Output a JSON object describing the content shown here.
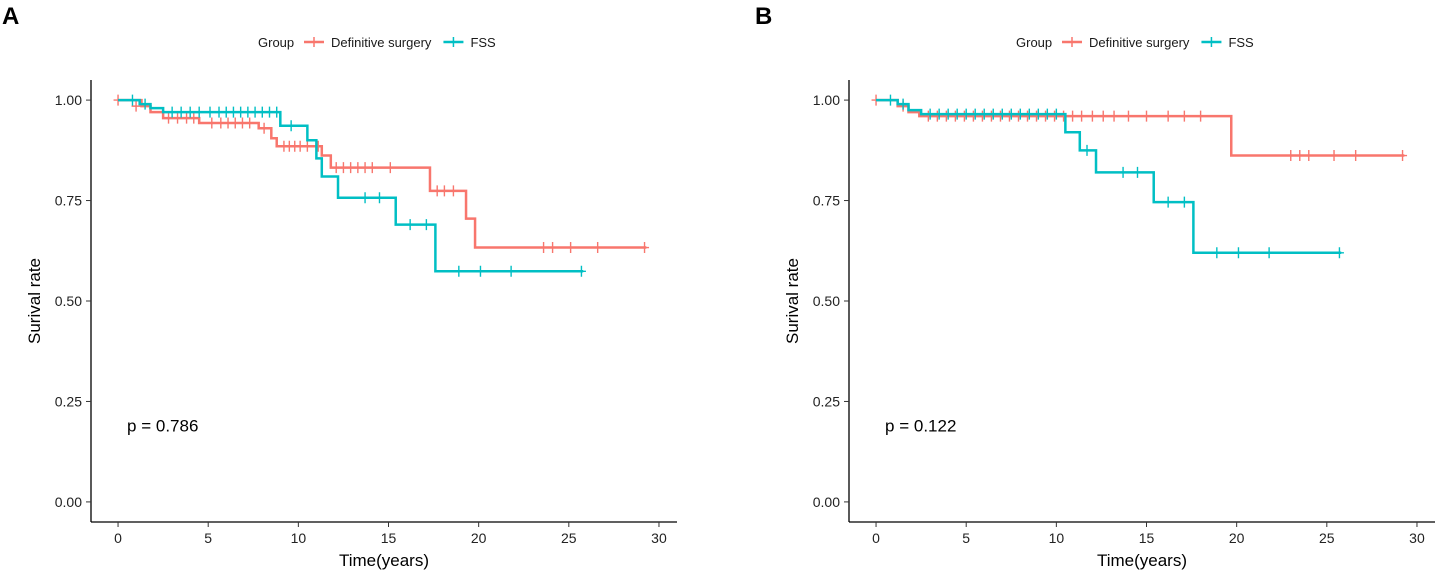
{
  "chart_data": [
    {
      "type": "line",
      "panel_label": "A",
      "legend": {
        "title": "Group",
        "position": "top",
        "entries": [
          "Definitive surgery",
          "FSS"
        ]
      },
      "xlabel": "Time(years)",
      "ylabel": "Surival rate",
      "xlim": [
        -1.5,
        31
      ],
      "ylim": [
        -0.05,
        1.05
      ],
      "x_ticks": [
        0,
        5,
        10,
        15,
        20,
        25,
        30
      ],
      "y_ticks": [
        "0.00",
        "0.25",
        "0.50",
        "0.75",
        "1.00"
      ],
      "annotation": {
        "text": "p = 0.786",
        "x": 0.5,
        "y": 0.19
      },
      "series": [
        {
          "name": "Definitive surgery",
          "color": "#F8766D",
          "steps": [
            [
              0,
              1.0
            ],
            [
              1.3,
              0.985
            ],
            [
              1.8,
              0.97
            ],
            [
              2.5,
              0.955
            ],
            [
              4.5,
              0.943
            ],
            [
              7.8,
              0.93
            ],
            [
              8.5,
              0.905
            ],
            [
              8.8,
              0.885
            ],
            [
              11.3,
              0.862
            ],
            [
              11.8,
              0.832
            ],
            [
              17.3,
              0.774
            ],
            [
              19.3,
              0.705
            ],
            [
              19.8,
              0.633
            ],
            [
              29.3,
              0.633
            ]
          ],
          "censor": [
            [
              0,
              1.0
            ],
            [
              1.0,
              0.985
            ],
            [
              2.8,
              0.955
            ],
            [
              3.3,
              0.955
            ],
            [
              3.8,
              0.955
            ],
            [
              4.2,
              0.955
            ],
            [
              5.2,
              0.943
            ],
            [
              5.7,
              0.943
            ],
            [
              6.1,
              0.943
            ],
            [
              6.5,
              0.943
            ],
            [
              6.9,
              0.943
            ],
            [
              7.3,
              0.943
            ],
            [
              8.1,
              0.93
            ],
            [
              9.2,
              0.885
            ],
            [
              9.5,
              0.885
            ],
            [
              9.8,
              0.885
            ],
            [
              10.1,
              0.885
            ],
            [
              10.5,
              0.885
            ],
            [
              11.1,
              0.885
            ],
            [
              12.1,
              0.832
            ],
            [
              12.5,
              0.832
            ],
            [
              12.9,
              0.832
            ],
            [
              13.3,
              0.832
            ],
            [
              13.7,
              0.832
            ],
            [
              14.1,
              0.832
            ],
            [
              15.1,
              0.832
            ],
            [
              17.7,
              0.774
            ],
            [
              18.1,
              0.774
            ],
            [
              18.6,
              0.774
            ],
            [
              23.6,
              0.633
            ],
            [
              24.1,
              0.633
            ],
            [
              25.1,
              0.633
            ],
            [
              26.6,
              0.633
            ],
            [
              29.2,
              0.633
            ]
          ]
        },
        {
          "name": "FSS",
          "color": "#00BFC4",
          "steps": [
            [
              0,
              1.0
            ],
            [
              1.2,
              0.99
            ],
            [
              1.8,
              0.98
            ],
            [
              2.5,
              0.97
            ],
            [
              9.0,
              0.936
            ],
            [
              10.5,
              0.9
            ],
            [
              11.0,
              0.855
            ],
            [
              11.3,
              0.81
            ],
            [
              12.2,
              0.757
            ],
            [
              15.4,
              0.69
            ],
            [
              17.6,
              0.574
            ],
            [
              25.8,
              0.574
            ]
          ],
          "censor": [
            [
              0.8,
              1.0
            ],
            [
              1.5,
              0.99
            ],
            [
              3.0,
              0.97
            ],
            [
              3.5,
              0.97
            ],
            [
              4.0,
              0.97
            ],
            [
              4.5,
              0.97
            ],
            [
              5.1,
              0.97
            ],
            [
              5.6,
              0.97
            ],
            [
              6.0,
              0.97
            ],
            [
              6.4,
              0.97
            ],
            [
              6.8,
              0.97
            ],
            [
              7.2,
              0.97
            ],
            [
              7.6,
              0.97
            ],
            [
              8.0,
              0.97
            ],
            [
              8.4,
              0.97
            ],
            [
              8.8,
              0.97
            ],
            [
              9.6,
              0.936
            ],
            [
              13.7,
              0.757
            ],
            [
              14.5,
              0.757
            ],
            [
              16.2,
              0.69
            ],
            [
              17.1,
              0.69
            ],
            [
              18.9,
              0.574
            ],
            [
              20.1,
              0.574
            ],
            [
              21.8,
              0.574
            ],
            [
              25.7,
              0.574
            ]
          ]
        }
      ]
    },
    {
      "type": "line",
      "panel_label": "B",
      "legend": {
        "title": "Group",
        "position": "top",
        "entries": [
          "Definitive surgery",
          "FSS"
        ]
      },
      "xlabel": "Time(years)",
      "ylabel": "Surival rate",
      "xlim": [
        -1.5,
        31
      ],
      "ylim": [
        -0.05,
        1.05
      ],
      "x_ticks": [
        0,
        5,
        10,
        15,
        20,
        25,
        30
      ],
      "y_ticks": [
        "0.00",
        "0.25",
        "0.50",
        "0.75",
        "1.00"
      ],
      "annotation": {
        "text": "p = 0.122",
        "x": 0.5,
        "y": 0.19
      },
      "series": [
        {
          "name": "Definitive surgery",
          "color": "#F8766D",
          "steps": [
            [
              0,
              1.0
            ],
            [
              1.2,
              0.985
            ],
            [
              1.8,
              0.97
            ],
            [
              2.4,
              0.96
            ],
            [
              19.7,
              0.862
            ],
            [
              29.3,
              0.862
            ]
          ],
          "censor": [
            [
              0,
              1.0
            ],
            [
              1.5,
              0.985
            ],
            [
              2.9,
              0.96
            ],
            [
              3.4,
              0.96
            ],
            [
              3.9,
              0.96
            ],
            [
              4.4,
              0.96
            ],
            [
              4.9,
              0.96
            ],
            [
              5.4,
              0.96
            ],
            [
              5.9,
              0.96
            ],
            [
              6.4,
              0.96
            ],
            [
              6.9,
              0.96
            ],
            [
              7.4,
              0.96
            ],
            [
              7.9,
              0.96
            ],
            [
              8.4,
              0.96
            ],
            [
              8.9,
              0.96
            ],
            [
              9.4,
              0.96
            ],
            [
              9.9,
              0.96
            ],
            [
              10.4,
              0.96
            ],
            [
              10.9,
              0.96
            ],
            [
              11.4,
              0.96
            ],
            [
              12.0,
              0.96
            ],
            [
              12.6,
              0.96
            ],
            [
              13.2,
              0.96
            ],
            [
              14.0,
              0.96
            ],
            [
              15.0,
              0.96
            ],
            [
              16.2,
              0.96
            ],
            [
              17.1,
              0.96
            ],
            [
              18.0,
              0.96
            ],
            [
              23.0,
              0.862
            ],
            [
              23.5,
              0.862
            ],
            [
              24.0,
              0.862
            ],
            [
              25.4,
              0.862
            ],
            [
              26.6,
              0.862
            ],
            [
              29.2,
              0.862
            ]
          ]
        },
        {
          "name": "FSS",
          "color": "#00BFC4",
          "steps": [
            [
              0,
              1.0
            ],
            [
              1.2,
              0.99
            ],
            [
              1.8,
              0.975
            ],
            [
              2.5,
              0.965
            ],
            [
              10.5,
              0.92
            ],
            [
              11.3,
              0.875
            ],
            [
              12.2,
              0.82
            ],
            [
              15.4,
              0.746
            ],
            [
              17.6,
              0.62
            ],
            [
              25.8,
              0.62
            ]
          ],
          "censor": [
            [
              0.8,
              1.0
            ],
            [
              1.5,
              0.99
            ],
            [
              3.0,
              0.965
            ],
            [
              3.5,
              0.965
            ],
            [
              4.0,
              0.965
            ],
            [
              4.5,
              0.965
            ],
            [
              5.0,
              0.965
            ],
            [
              5.5,
              0.965
            ],
            [
              6.0,
              0.965
            ],
            [
              6.5,
              0.965
            ],
            [
              7.0,
              0.965
            ],
            [
              7.5,
              0.965
            ],
            [
              8.0,
              0.965
            ],
            [
              8.5,
              0.965
            ],
            [
              9.0,
              0.965
            ],
            [
              9.5,
              0.965
            ],
            [
              10.0,
              0.965
            ],
            [
              11.7,
              0.875
            ],
            [
              13.7,
              0.82
            ],
            [
              14.5,
              0.82
            ],
            [
              16.2,
              0.746
            ],
            [
              17.1,
              0.746
            ],
            [
              18.9,
              0.62
            ],
            [
              20.1,
              0.62
            ],
            [
              21.8,
              0.62
            ],
            [
              25.7,
              0.62
            ]
          ]
        }
      ]
    }
  ]
}
